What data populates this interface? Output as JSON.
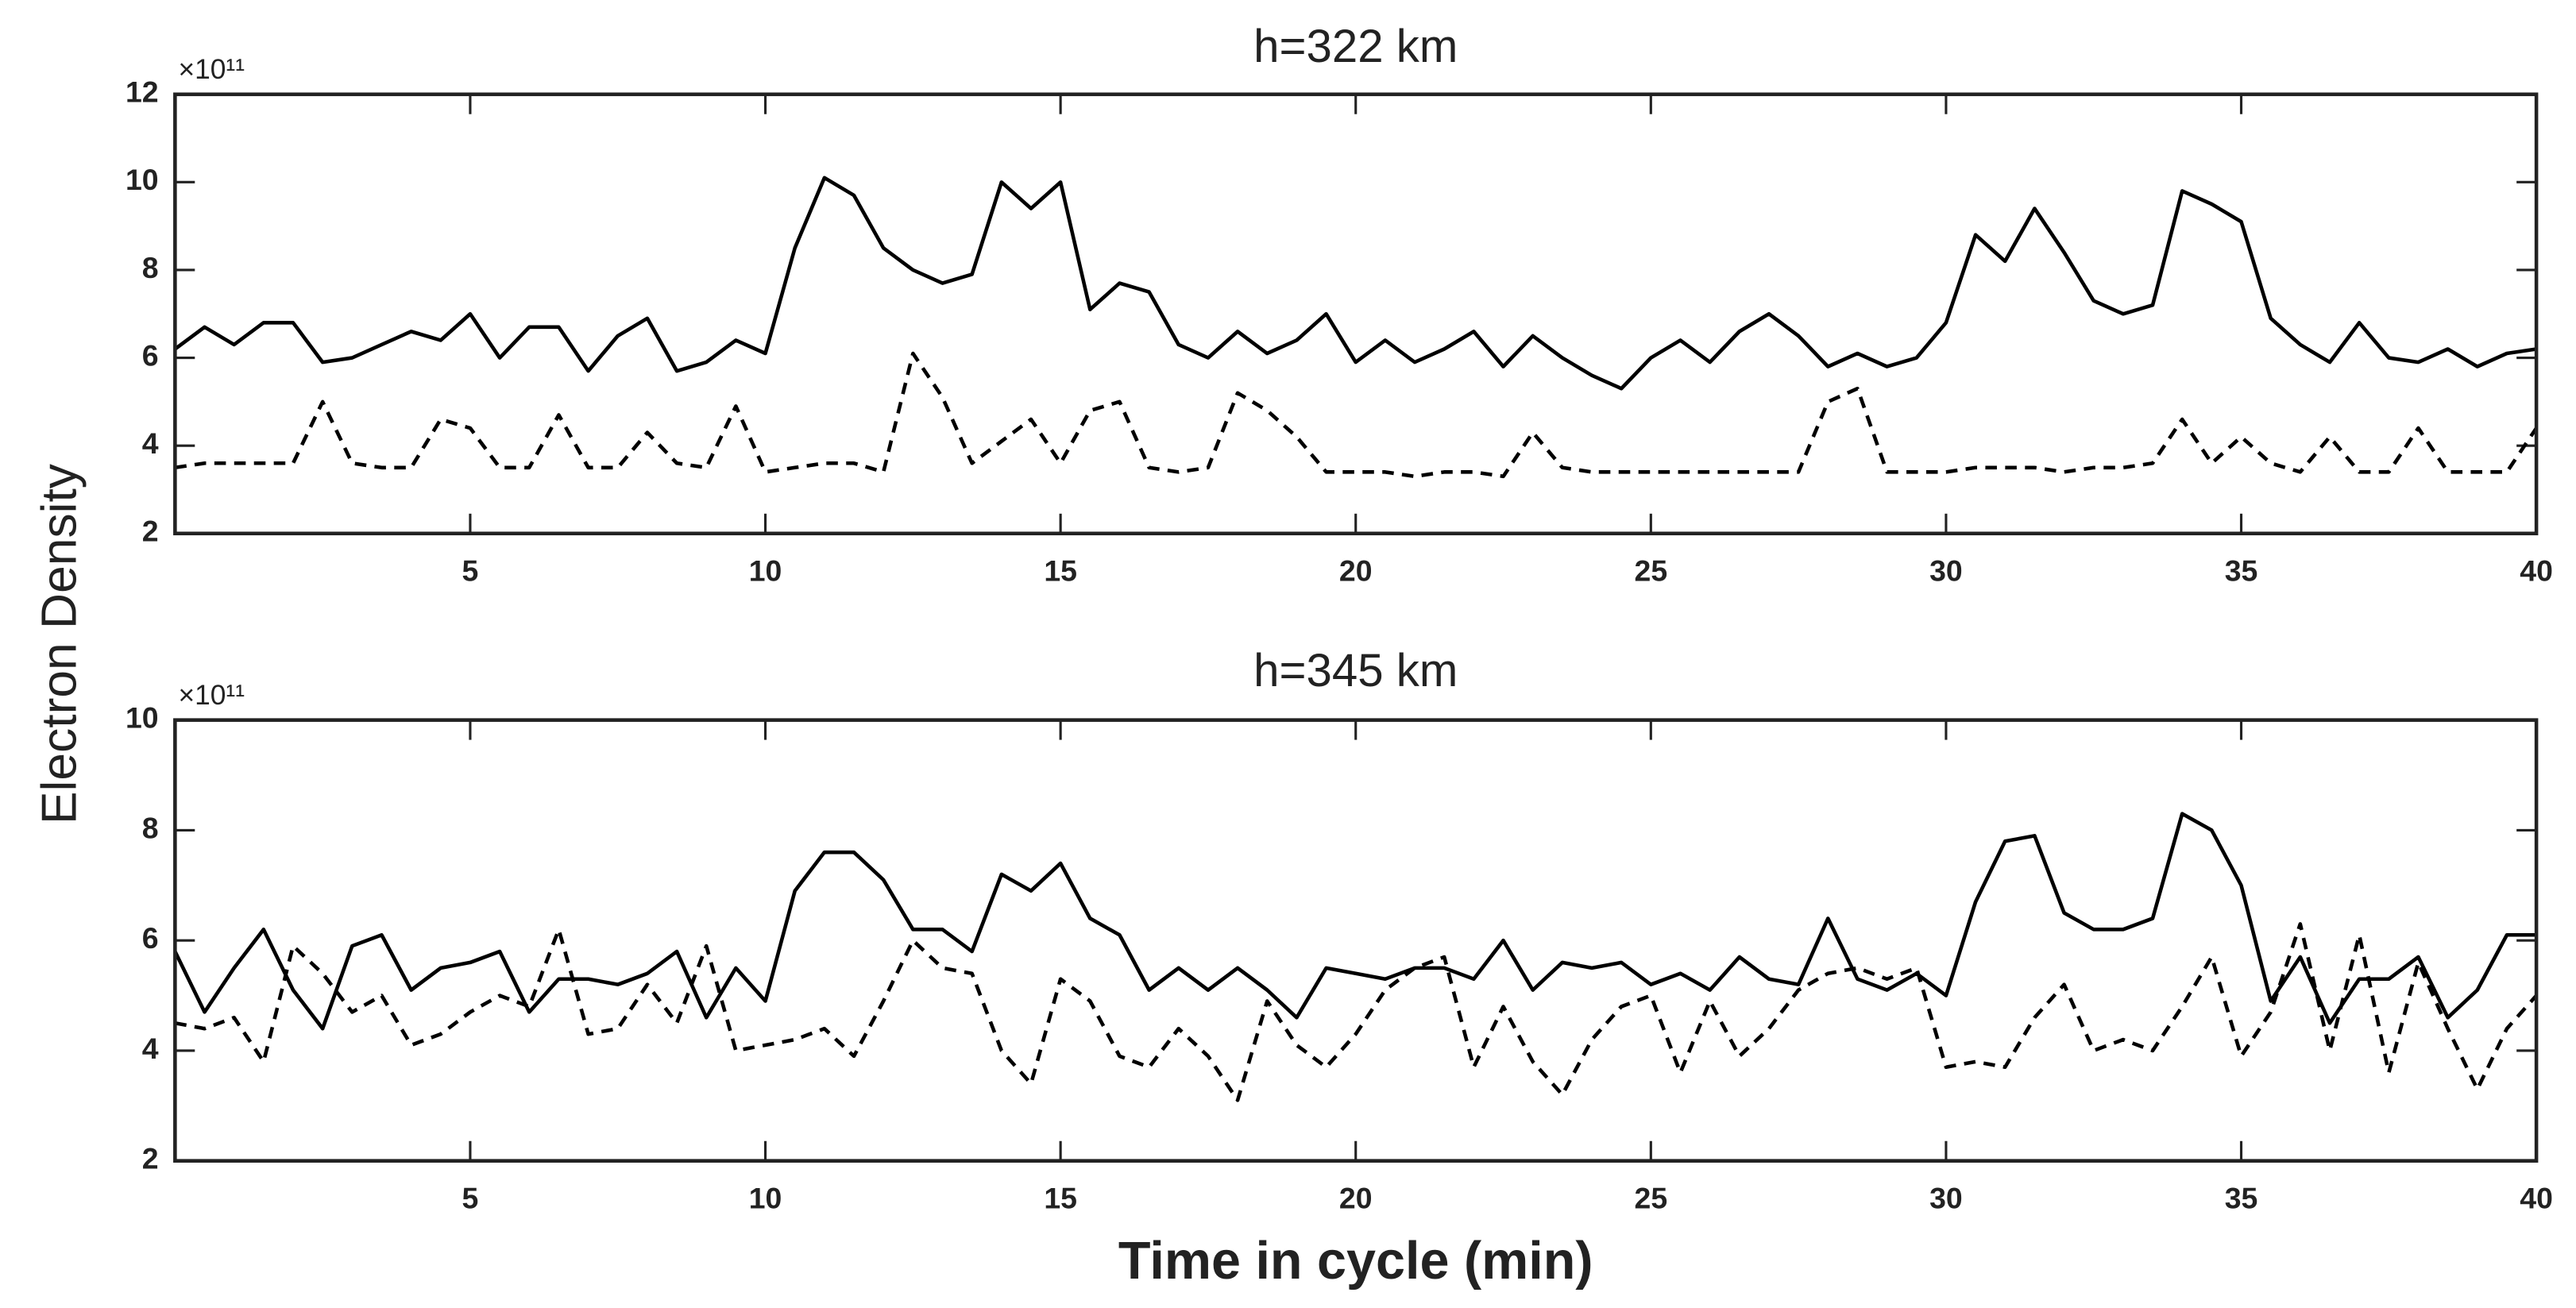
{
  "chart_data": [
    {
      "type": "line",
      "title": "h=322 km",
      "y_multiplier": "×10¹¹",
      "ylabel": "Electron Density",
      "x": [
        0,
        0.5,
        1,
        1.5,
        2,
        2.5,
        3,
        3.5,
        4,
        4.5,
        5,
        5.5,
        6,
        6.5,
        7,
        7.5,
        8,
        8.5,
        9,
        9.5,
        10,
        10.5,
        11,
        11.5,
        12,
        12.5,
        13,
        13.5,
        14,
        14.5,
        15,
        15.5,
        16,
        16.5,
        17,
        17.5,
        18,
        18.5,
        19,
        19.5,
        20,
        20.5,
        21,
        21.5,
        22,
        22.5,
        23,
        23.5,
        24,
        24.5,
        25,
        25.5,
        26,
        26.5,
        27,
        27.5,
        28,
        28.5,
        29,
        29.5,
        30,
        30.5,
        31,
        31.5,
        32,
        32.5,
        33,
        33.5,
        34,
        34.5,
        35,
        35.5,
        36,
        36.5,
        37,
        37.5,
        38,
        38.5,
        39,
        39.5,
        40
      ],
      "xlim": [
        0,
        40
      ],
      "xticks": [
        5,
        10,
        15,
        20,
        25,
        30,
        35,
        40
      ],
      "ylim": [
        2,
        12
      ],
      "yticks": [
        2,
        4,
        6,
        8,
        10,
        12
      ],
      "series": [
        {
          "color": "#000000",
          "style": "solid",
          "values": [
            6.2,
            6.7,
            6.3,
            6.8,
            6.8,
            5.9,
            6.0,
            6.3,
            6.6,
            6.4,
            7.0,
            6.0,
            6.7,
            6.7,
            5.7,
            6.5,
            6.9,
            5.7,
            5.9,
            6.4,
            6.1,
            8.5,
            10.1,
            9.7,
            8.5,
            8.0,
            7.7,
            7.9,
            10.0,
            9.4,
            10.0,
            7.1,
            7.7,
            7.5,
            6.3,
            6.0,
            6.6,
            6.1,
            6.4,
            7.0,
            5.9,
            6.4,
            5.9,
            6.2,
            6.6,
            5.8,
            6.5,
            6.0,
            5.6,
            5.3,
            6.0,
            6.4,
            5.9,
            6.6,
            7.0,
            6.5,
            5.8,
            6.1,
            5.8,
            6.0,
            6.8,
            8.8,
            8.2,
            9.4,
            8.4,
            7.3,
            7.0,
            7.2,
            9.8,
            9.5,
            9.1,
            6.9,
            6.3,
            5.9,
            6.8,
            6.0,
            5.9,
            6.2,
            5.8,
            6.1,
            6.2
          ]
        },
        {
          "color": "#000000",
          "style": "dashed",
          "values": [
            3.5,
            3.6,
            3.6,
            3.6,
            3.6,
            5.0,
            3.6,
            3.5,
            3.5,
            4.6,
            4.4,
            3.5,
            3.5,
            4.7,
            3.5,
            3.5,
            4.3,
            3.6,
            3.5,
            4.9,
            3.4,
            3.5,
            3.6,
            3.6,
            3.4,
            6.1,
            5.1,
            3.6,
            4.1,
            4.6,
            3.6,
            4.8,
            5.0,
            3.5,
            3.4,
            3.5,
            5.2,
            4.8,
            4.2,
            3.4,
            3.4,
            3.4,
            3.3,
            3.4,
            3.4,
            3.3,
            4.3,
            3.5,
            3.4,
            3.4,
            3.4,
            3.4,
            3.4,
            3.4,
            3.4,
            3.4,
            5.0,
            5.3,
            3.4,
            3.4,
            3.4,
            3.5,
            3.5,
            3.5,
            3.4,
            3.5,
            3.5,
            3.6,
            4.6,
            3.6,
            4.2,
            3.6,
            3.4,
            4.2,
            3.4,
            3.4,
            4.4,
            3.4,
            3.4,
            3.4,
            4.4
          ]
        }
      ]
    },
    {
      "type": "line",
      "title": "h=345 km",
      "y_multiplier": "×10¹¹",
      "xlabel": "Time in cycle  (min)",
      "x": [
        0,
        0.5,
        1,
        1.5,
        2,
        2.5,
        3,
        3.5,
        4,
        4.5,
        5,
        5.5,
        6,
        6.5,
        7,
        7.5,
        8,
        8.5,
        9,
        9.5,
        10,
        10.5,
        11,
        11.5,
        12,
        12.5,
        13,
        13.5,
        14,
        14.5,
        15,
        15.5,
        16,
        16.5,
        17,
        17.5,
        18,
        18.5,
        19,
        19.5,
        20,
        20.5,
        21,
        21.5,
        22,
        22.5,
        23,
        23.5,
        24,
        24.5,
        25,
        25.5,
        26,
        26.5,
        27,
        27.5,
        28,
        28.5,
        29,
        29.5,
        30,
        30.5,
        31,
        31.5,
        32,
        32.5,
        33,
        33.5,
        34,
        34.5,
        35,
        35.5,
        36,
        36.5,
        37,
        37.5,
        38,
        38.5,
        39,
        39.5,
        40
      ],
      "xlim": [
        0,
        40
      ],
      "xticks": [
        5,
        10,
        15,
        20,
        25,
        30,
        35,
        40
      ],
      "ylim": [
        2,
        10
      ],
      "yticks": [
        2,
        4,
        6,
        8,
        10
      ],
      "series": [
        {
          "color": "#000000",
          "style": "solid",
          "values": [
            5.8,
            4.7,
            5.5,
            6.2,
            5.1,
            4.4,
            5.9,
            6.1,
            5.1,
            5.5,
            5.6,
            5.8,
            4.7,
            5.3,
            5.3,
            5.2,
            5.4,
            5.8,
            4.6,
            5.5,
            4.9,
            6.9,
            7.6,
            7.6,
            7.1,
            6.2,
            6.2,
            5.8,
            7.2,
            6.9,
            7.4,
            6.4,
            6.1,
            5.1,
            5.5,
            5.1,
            5.5,
            5.1,
            4.6,
            5.5,
            5.4,
            5.3,
            5.5,
            5.5,
            5.3,
            6.0,
            5.1,
            5.6,
            5.5,
            5.6,
            5.2,
            5.4,
            5.1,
            5.7,
            5.3,
            5.2,
            6.4,
            5.3,
            5.1,
            5.4,
            5.0,
            6.7,
            7.8,
            7.9,
            6.5,
            6.2,
            6.2,
            6.4,
            8.3,
            8.0,
            7.0,
            4.9,
            5.7,
            4.5,
            5.3,
            5.3,
            5.7,
            4.6,
            5.1,
            6.1,
            6.1
          ]
        },
        {
          "color": "#000000",
          "style": "dashed",
          "values": [
            4.5,
            4.4,
            4.6,
            3.8,
            5.9,
            5.4,
            4.7,
            5.0,
            4.1,
            4.3,
            4.7,
            5.0,
            4.8,
            6.2,
            4.3,
            4.4,
            5.2,
            4.5,
            5.9,
            4.0,
            4.1,
            4.2,
            4.4,
            3.9,
            4.9,
            6.0,
            5.5,
            5.4,
            4.0,
            3.4,
            5.3,
            4.9,
            3.9,
            3.7,
            4.4,
            3.9,
            3.1,
            4.9,
            4.1,
            3.7,
            4.3,
            5.1,
            5.5,
            5.7,
            3.7,
            4.8,
            3.8,
            3.2,
            4.2,
            4.8,
            5.0,
            3.6,
            4.9,
            3.9,
            4.4,
            5.1,
            5.4,
            5.5,
            5.3,
            5.5,
            3.7,
            3.8,
            3.7,
            4.6,
            5.2,
            4.0,
            4.2,
            4.0,
            4.8,
            5.7,
            3.9,
            4.7,
            6.3,
            4.0,
            6.1,
            3.6,
            5.6,
            4.4,
            3.3,
            4.4,
            5.0
          ]
        }
      ]
    }
  ]
}
